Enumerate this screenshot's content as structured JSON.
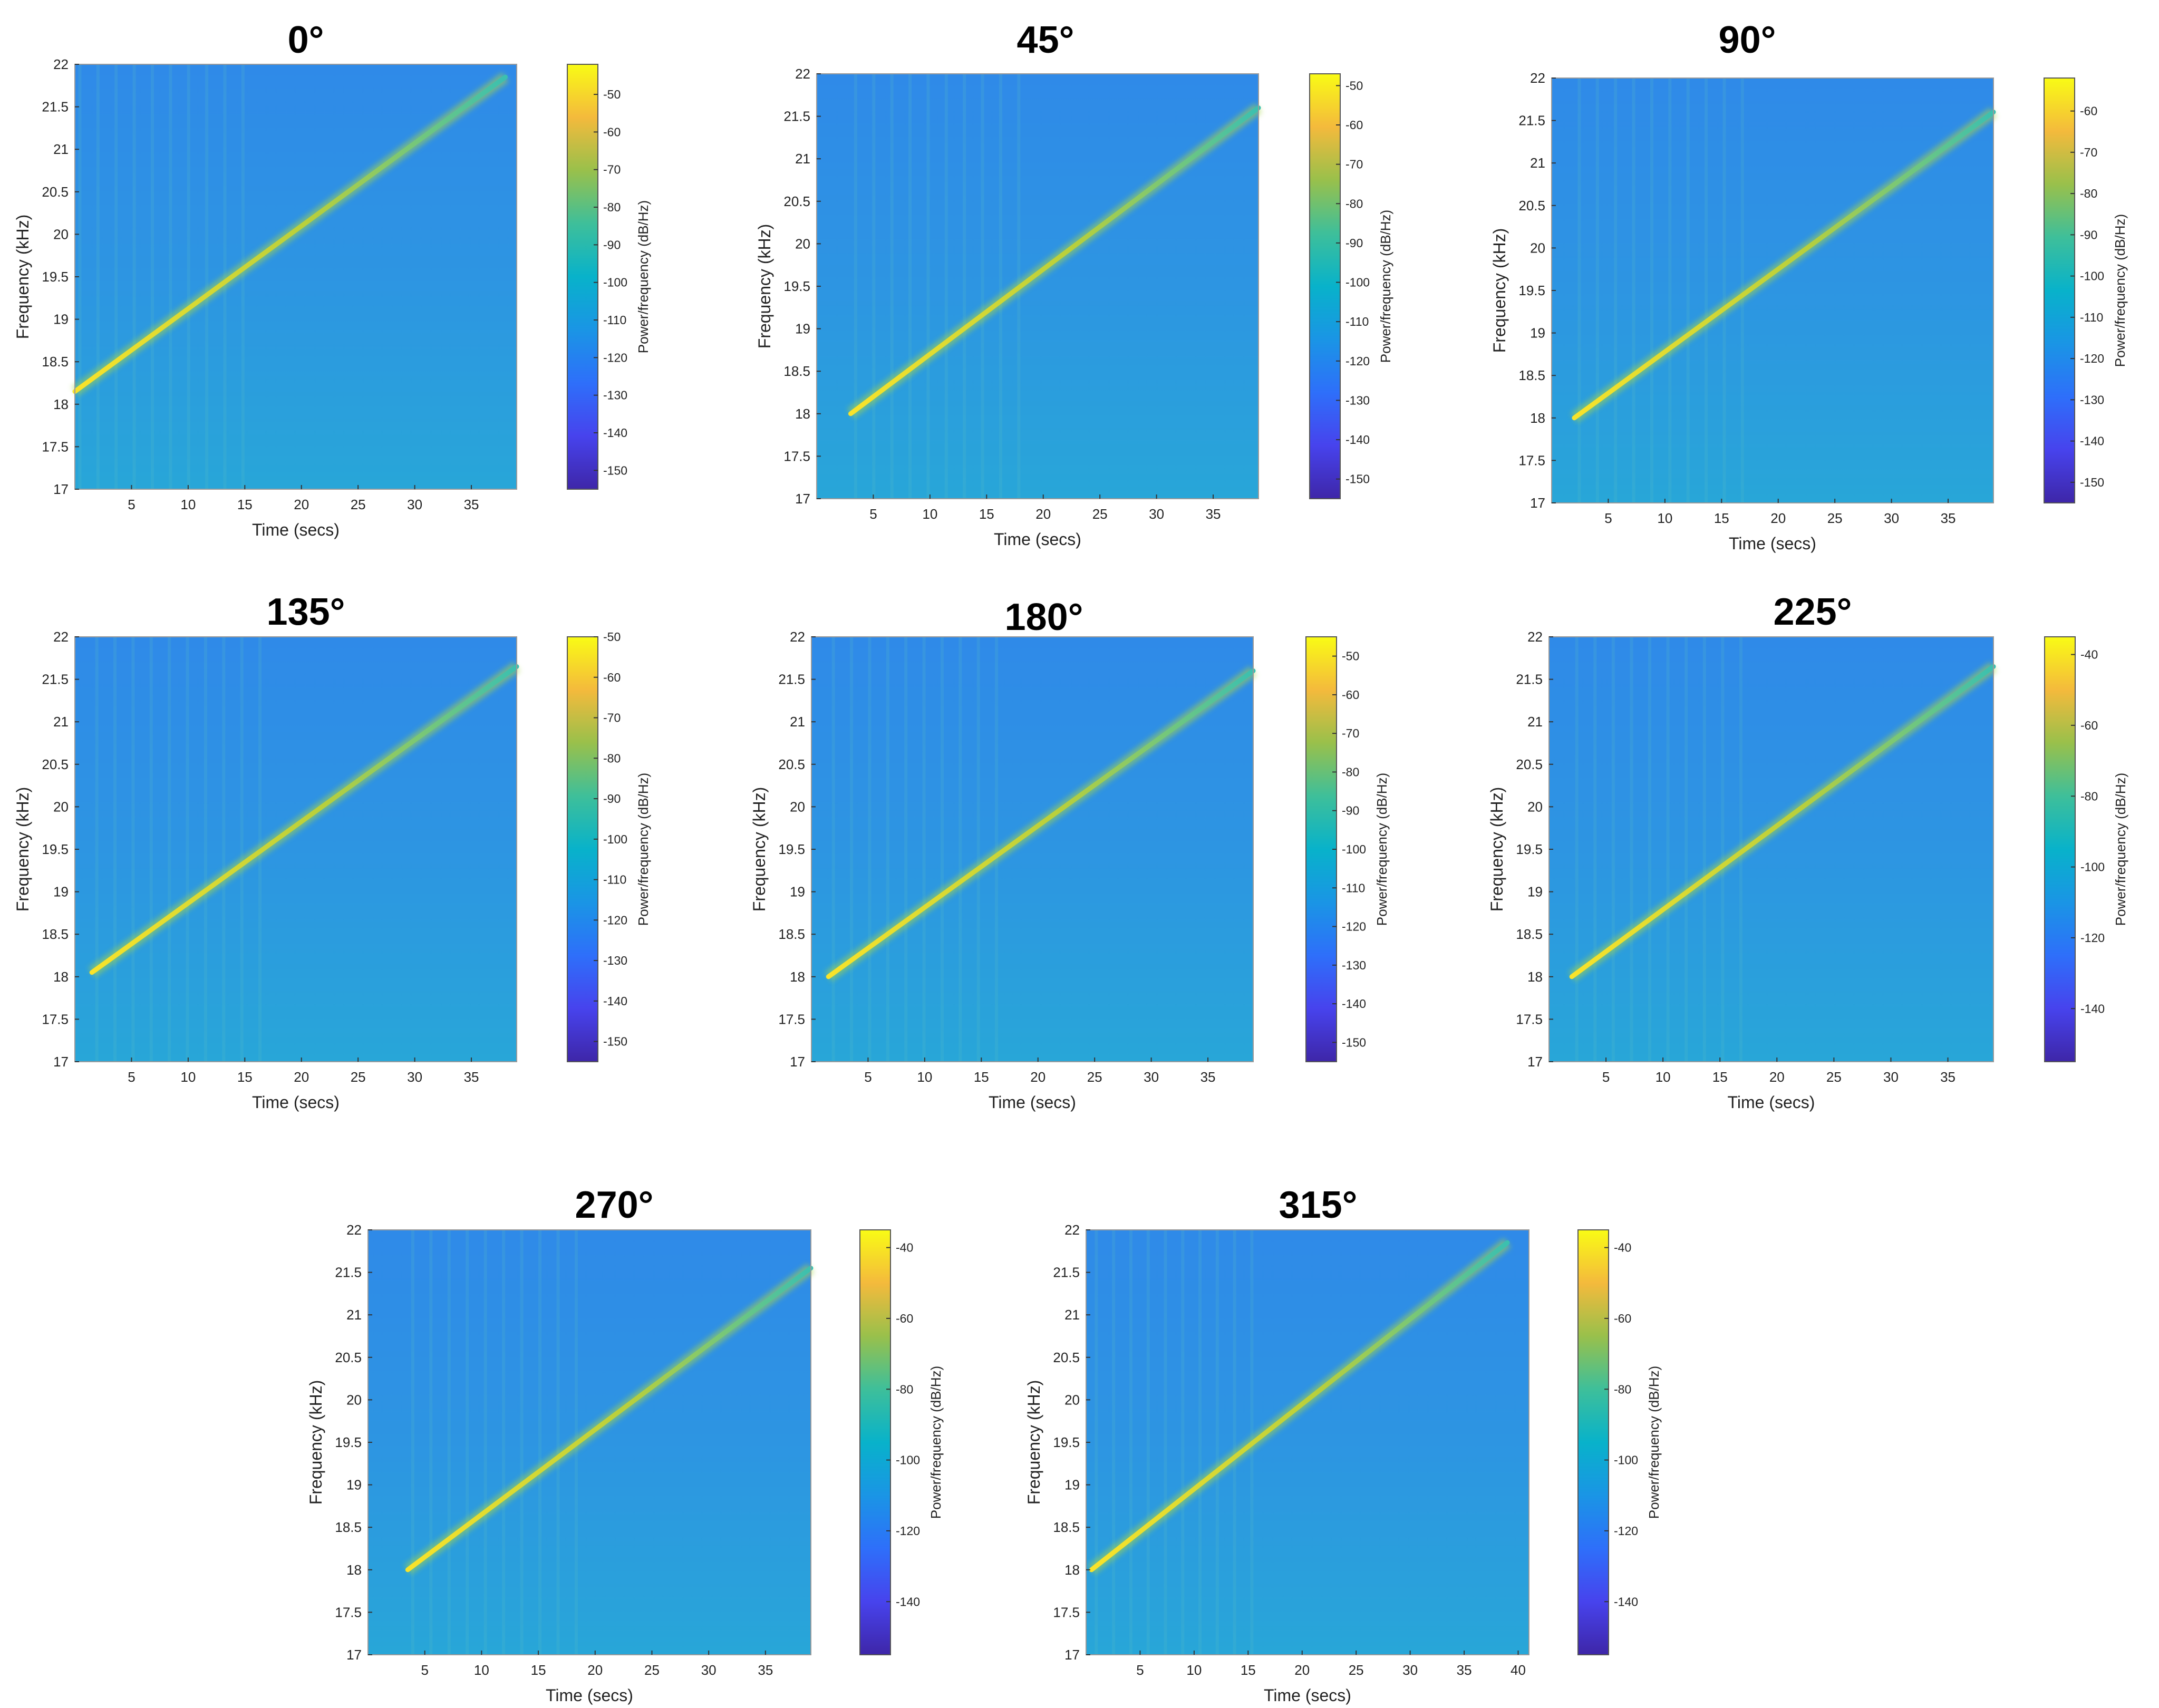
{
  "chart_data": [
    {
      "type": "heatmap",
      "title": "0°",
      "xlabel": "Time (secs)",
      "ylabel": "Frequency (kHz)",
      "colorbar_label": "Power/frequency (dB/Hz)",
      "xlim": [
        0,
        39
      ],
      "ylim": [
        17,
        22
      ],
      "x_ticks": [
        5,
        10,
        15,
        20,
        25,
        30,
        35
      ],
      "y_ticks": [
        17,
        17.5,
        18,
        18.5,
        19,
        19.5,
        20,
        20.5,
        21,
        21.5,
        22
      ],
      "clim": [
        -155,
        -42
      ],
      "colorbar_ticks": [
        -50,
        -60,
        -70,
        -80,
        -90,
        -100,
        -110,
        -120,
        -130,
        -140,
        -150
      ],
      "chirp": {
        "start": [
          0,
          18.15
        ],
        "end": [
          38,
          21.85
        ]
      }
    },
    {
      "type": "heatmap",
      "title": "45°",
      "xlabel": "Time (secs)",
      "ylabel": "Frequency (kHz)",
      "colorbar_label": "Power/frequency (dB/Hz)",
      "xlim": [
        0,
        39
      ],
      "ylim": [
        17,
        22
      ],
      "x_ticks": [
        5,
        10,
        15,
        20,
        25,
        30,
        35
      ],
      "y_ticks": [
        17,
        17.5,
        18,
        18.5,
        19,
        19.5,
        20,
        20.5,
        21,
        21.5,
        22
      ],
      "clim": [
        -155,
        -47
      ],
      "colorbar_ticks": [
        -50,
        -60,
        -70,
        -80,
        -90,
        -100,
        -110,
        -120,
        -130,
        -140,
        -150
      ],
      "chirp": {
        "start": [
          3,
          18.0
        ],
        "end": [
          39,
          21.6
        ]
      }
    },
    {
      "type": "heatmap",
      "title": "90°",
      "xlabel": "Time (secs)",
      "ylabel": "Frequency (kHz)",
      "colorbar_label": "Power/frequency (dB/Hz)",
      "xlim": [
        0,
        39
      ],
      "ylim": [
        17,
        22
      ],
      "x_ticks": [
        5,
        10,
        15,
        20,
        25,
        30,
        35
      ],
      "y_ticks": [
        17,
        17.5,
        18,
        18.5,
        19,
        19.5,
        20,
        20.5,
        21,
        21.5,
        22
      ],
      "clim": [
        -155,
        -52
      ],
      "colorbar_ticks": [
        -60,
        -70,
        -80,
        -90,
        -100,
        -110,
        -120,
        -130,
        -140,
        -150
      ],
      "chirp": {
        "start": [
          2,
          18.0
        ],
        "end": [
          39,
          21.6
        ]
      }
    },
    {
      "type": "heatmap",
      "title": "135°",
      "xlabel": "Time (secs)",
      "ylabel": "Frequency (kHz)",
      "colorbar_label": "Power/frequency (dB/Hz)",
      "xlim": [
        0,
        39
      ],
      "ylim": [
        17,
        22
      ],
      "x_ticks": [
        5,
        10,
        15,
        20,
        25,
        30,
        35
      ],
      "y_ticks": [
        17,
        17.5,
        18,
        18.5,
        19,
        19.5,
        20,
        20.5,
        21,
        21.5,
        22
      ],
      "clim": [
        -155,
        -50
      ],
      "colorbar_ticks": [
        -50,
        -60,
        -70,
        -80,
        -90,
        -100,
        -110,
        -120,
        -130,
        -140,
        -150
      ],
      "chirp": {
        "start": [
          1.5,
          18.05
        ],
        "end": [
          39,
          21.65
        ]
      }
    },
    {
      "type": "heatmap",
      "title": "180°",
      "xlabel": "Time (secs)",
      "ylabel": "Frequency (kHz)",
      "colorbar_label": "Power/frequency (dB/Hz)",
      "xlim": [
        0,
        39
      ],
      "ylim": [
        17,
        22
      ],
      "x_ticks": [
        5,
        10,
        15,
        20,
        25,
        30,
        35
      ],
      "y_ticks": [
        17,
        17.5,
        18,
        18.5,
        19,
        19.5,
        20,
        20.5,
        21,
        21.5,
        22
      ],
      "clim": [
        -155,
        -45
      ],
      "colorbar_ticks": [
        -50,
        -60,
        -70,
        -80,
        -90,
        -100,
        -110,
        -120,
        -130,
        -140,
        -150
      ],
      "chirp": {
        "start": [
          1.5,
          18.0
        ],
        "end": [
          39,
          21.6
        ]
      }
    },
    {
      "type": "heatmap",
      "title": "225°",
      "xlabel": "Time (secs)",
      "ylabel": "Frequency (kHz)",
      "colorbar_label": "Power/frequency (dB/Hz)",
      "xlim": [
        0,
        39
      ],
      "ylim": [
        17,
        22
      ],
      "x_ticks": [
        5,
        10,
        15,
        20,
        25,
        30,
        35
      ],
      "y_ticks": [
        17,
        17.5,
        18,
        18.5,
        19,
        19.5,
        20,
        20.5,
        21,
        21.5,
        22
      ],
      "clim": [
        -155,
        -35
      ],
      "colorbar_ticks": [
        -40,
        -60,
        -80,
        -100,
        -120,
        -140
      ],
      "chirp": {
        "start": [
          2,
          18.0
        ],
        "end": [
          39,
          21.65
        ]
      }
    },
    {
      "type": "heatmap",
      "title": "270°",
      "xlabel": "Time (secs)",
      "ylabel": "Frequency (kHz)",
      "colorbar_label": "Power/frequency (dB/Hz)",
      "xlim": [
        0,
        39
      ],
      "ylim": [
        17,
        22
      ],
      "x_ticks": [
        5,
        10,
        15,
        20,
        25,
        30,
        35
      ],
      "y_ticks": [
        17,
        17.5,
        18,
        18.5,
        19,
        19.5,
        20,
        20.5,
        21,
        21.5,
        22
      ],
      "clim": [
        -155,
        -35
      ],
      "colorbar_ticks": [
        -40,
        -60,
        -80,
        -100,
        -120,
        -140
      ],
      "chirp": {
        "start": [
          3.5,
          18.0
        ],
        "end": [
          39,
          21.55
        ]
      }
    },
    {
      "type": "heatmap",
      "title": "315°",
      "xlabel": "Time (secs)",
      "ylabel": "Frequency (kHz)",
      "colorbar_label": "Power/frequency (dB/Hz)",
      "xlim": [
        0,
        41
      ],
      "ylim": [
        17,
        22
      ],
      "x_ticks": [
        5,
        10,
        15,
        20,
        25,
        30,
        35,
        40
      ],
      "y_ticks": [
        17,
        17.5,
        18,
        18.5,
        19,
        19.5,
        20,
        20.5,
        21,
        21.5,
        22
      ],
      "clim": [
        -155,
        -35
      ],
      "colorbar_ticks": [
        -40,
        -60,
        -80,
        -100,
        -120,
        -140
      ],
      "chirp": {
        "start": [
          0.5,
          18.0
        ],
        "end": [
          39,
          21.85
        ]
      }
    }
  ]
}
